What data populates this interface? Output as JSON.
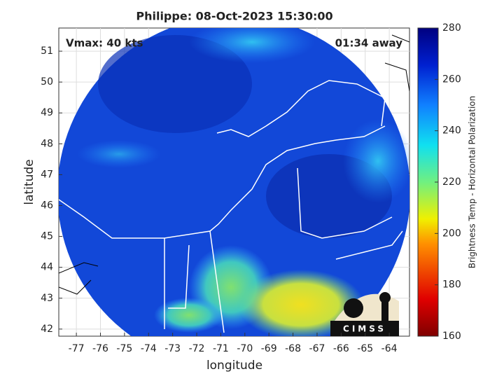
{
  "chart_data": {
    "type": "map",
    "title": "Philippe: 08-Oct-2023 15:30:00",
    "annotations": [
      "Vmax: 40 kts",
      "01:34 away"
    ],
    "x_label": "longitude",
    "y_label": "latitude",
    "xlim": [
      -77.73,
      -63.16
    ],
    "ylim": [
      41.77,
      51.75
    ],
    "xticks": [
      -77,
      -76,
      -75,
      -74,
      -73,
      -72,
      -71,
      -70,
      -69,
      -68,
      -67,
      -66,
      -65,
      -64
    ],
    "yticks": [
      42,
      43,
      44,
      45,
      46,
      47,
      48,
      49,
      50,
      51
    ],
    "grid": true,
    "colorbar": {
      "label": "Brightness Temp - Horizontal Polarization",
      "lim": [
        160,
        280
      ],
      "ticks": [
        160,
        180,
        200,
        220,
        240,
        260,
        280
      ]
    },
    "logo": "CIMSS"
  }
}
